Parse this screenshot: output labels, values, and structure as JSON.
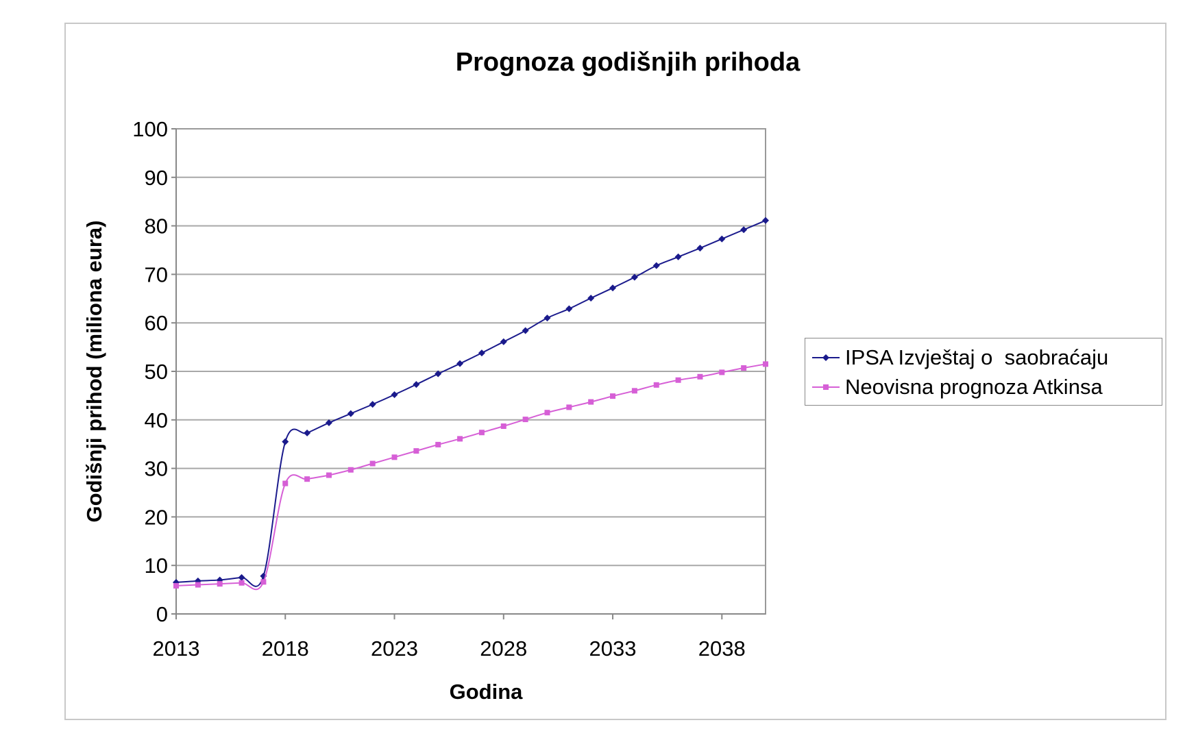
{
  "chart_data": {
    "type": "line",
    "title": "Prognoza godišnjih prihoda",
    "xlabel": "Godina",
    "ylabel": "Godišnji prihod (miliona eura)",
    "xlim": [
      2013,
      2040
    ],
    "ylim": [
      0,
      100
    ],
    "yticks": [
      0,
      10,
      20,
      30,
      40,
      50,
      60,
      70,
      80,
      90,
      100
    ],
    "xticks": [
      2013,
      2018,
      2023,
      2028,
      2033,
      2038
    ],
    "grid": "horizontal",
    "legend_position": "right",
    "x": [
      2013,
      2014,
      2015,
      2016,
      2017,
      2018,
      2019,
      2020,
      2021,
      2022,
      2023,
      2024,
      2025,
      2026,
      2027,
      2028,
      2029,
      2030,
      2031,
      2032,
      2033,
      2034,
      2035,
      2036,
      2037,
      2038,
      2039,
      2040
    ],
    "series": [
      {
        "name": "IPSA Izvještaj o  saobraćaju",
        "color": "#1a1a8c",
        "marker": "diamond",
        "values": [
          6.5,
          6.8,
          7.0,
          7.5,
          7.8,
          35.5,
          37.3,
          39.4,
          41.3,
          43.2,
          45.2,
          47.3,
          49.5,
          51.6,
          53.8,
          56.1,
          58.4,
          61.0,
          62.9,
          65.1,
          67.2,
          69.4,
          71.8,
          73.6,
          75.4,
          77.3,
          79.2,
          81.1
        ]
      },
      {
        "name": "Neovisna prognoza Atkinsa",
        "color": "#d65fd6",
        "marker": "square",
        "values": [
          5.8,
          6.0,
          6.2,
          6.4,
          6.6,
          26.9,
          27.8,
          28.6,
          29.7,
          31.0,
          32.3,
          33.6,
          34.9,
          36.1,
          37.4,
          38.7,
          40.1,
          41.5,
          42.6,
          43.7,
          44.9,
          46.0,
          47.2,
          48.2,
          48.9,
          49.8,
          50.7,
          51.5
        ]
      }
    ]
  }
}
